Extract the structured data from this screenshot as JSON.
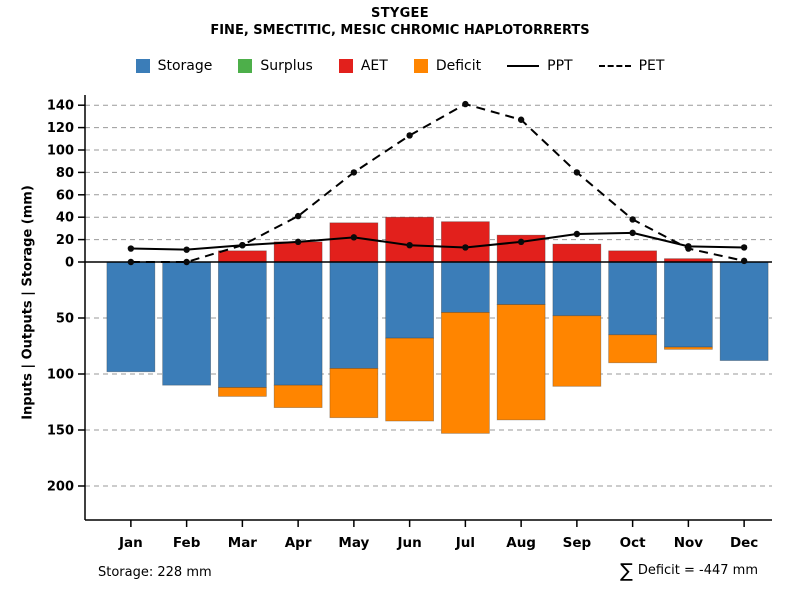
{
  "chart_data": {
    "type": "bar",
    "title": "STYGEE",
    "subtitle": "FINE, SMECTITIC, MESIC CHROMIC HAPLOTORRERTS",
    "ylabel": "Inputs | Outputs | Storage  (mm)",
    "categories": [
      "Jan",
      "Feb",
      "Mar",
      "Apr",
      "May",
      "Jun",
      "Jul",
      "Aug",
      "Sep",
      "Oct",
      "Nov",
      "Dec"
    ],
    "y_axis": {
      "up_ticks": [
        0,
        20,
        40,
        60,
        80,
        100,
        120,
        140
      ],
      "down_ticks": [
        50,
        100,
        150,
        200
      ],
      "up_range": [
        0,
        140
      ],
      "down_range": [
        0,
        200
      ],
      "grid": "dashed"
    },
    "series": [
      {
        "name": "Storage",
        "kind": "bar",
        "direction": "down",
        "color": "#3b7db8",
        "values": [
          98,
          110,
          112,
          110,
          95,
          68,
          45,
          38,
          48,
          65,
          76,
          88
        ]
      },
      {
        "name": "Surplus",
        "kind": "bar",
        "direction": "up",
        "color": "#4daf4a",
        "values": [
          0,
          0,
          0,
          0,
          0,
          0,
          0,
          0,
          0,
          0,
          0,
          0
        ]
      },
      {
        "name": "AET",
        "kind": "bar",
        "direction": "up",
        "color": "#e2201c",
        "values": [
          0,
          0,
          10,
          18,
          35,
          40,
          36,
          24,
          16,
          10,
          3,
          0
        ]
      },
      {
        "name": "Deficit",
        "kind": "bar",
        "direction": "down",
        "stacked_after": "Storage",
        "color": "#ff8500",
        "values": [
          0,
          0,
          8,
          20,
          44,
          74,
          108,
          103,
          63,
          25,
          2,
          0
        ]
      },
      {
        "name": "PPT",
        "kind": "line",
        "style": "solid",
        "color": "#000000",
        "marker": "dot",
        "values": [
          12,
          11,
          15,
          18,
          22,
          15,
          13,
          18,
          25,
          26,
          14,
          13
        ]
      },
      {
        "name": "PET",
        "kind": "line",
        "style": "dashed",
        "color": "#000000",
        "marker": "dot",
        "values": [
          0,
          0,
          15,
          41,
          80,
          113,
          141,
          127,
          80,
          38,
          12,
          1
        ]
      }
    ]
  },
  "legend": [
    {
      "label": "Storage",
      "type": "swatch",
      "color": "#3b7db8"
    },
    {
      "label": "Surplus",
      "type": "swatch",
      "color": "#4daf4a"
    },
    {
      "label": "AET",
      "type": "swatch",
      "color": "#e2201c"
    },
    {
      "label": "Deficit",
      "type": "swatch",
      "color": "#ff8500"
    },
    {
      "label": "PPT",
      "type": "line",
      "style": "solid"
    },
    {
      "label": "PET",
      "type": "line",
      "style": "dashed"
    }
  ],
  "footer": {
    "storage_note": "Storage: 228 mm",
    "sum_symbol": "∑",
    "deficit_note": "Deficit = -447 mm"
  },
  "colors": {
    "grid": "#9a9a9a",
    "axis": "#000000",
    "background": "#ffffff"
  }
}
